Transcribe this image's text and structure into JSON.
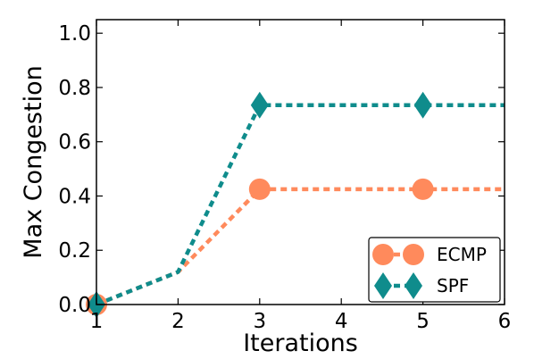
{
  "chart_data": {
    "type": "line",
    "xlabel": "Iterations",
    "ylabel": "Max Congestion",
    "xlim": [
      1,
      6
    ],
    "ylim": [
      0.0,
      1.05
    ],
    "xticks": [
      1,
      2,
      3,
      4,
      5,
      6
    ],
    "yticks": [
      0.0,
      0.2,
      0.4,
      0.6,
      0.8,
      1.0
    ],
    "xtick_labels": [
      "1",
      "2",
      "3",
      "4",
      "5",
      "6"
    ],
    "ytick_labels": [
      "0.0",
      "0.2",
      "0.4",
      "0.6",
      "0.8",
      "1.0"
    ],
    "grid": false,
    "legend_position": "bottom-right",
    "series": [
      {
        "name": "ECMP",
        "marker": "circle",
        "color": "#ff8a5c",
        "x": [
          1,
          2,
          3,
          4,
          5,
          6
        ],
        "y": [
          0.0,
          0.12,
          0.425,
          0.425,
          0.425,
          0.425
        ],
        "marked": [
          1,
          3,
          5
        ]
      },
      {
        "name": "SPF",
        "marker": "diamond",
        "color": "#0f8c8c",
        "x": [
          1,
          2,
          3,
          4,
          5,
          6
        ],
        "y": [
          0.0,
          0.12,
          0.735,
          0.735,
          0.735,
          0.735
        ],
        "marked": [
          1,
          3,
          5
        ]
      }
    ]
  }
}
